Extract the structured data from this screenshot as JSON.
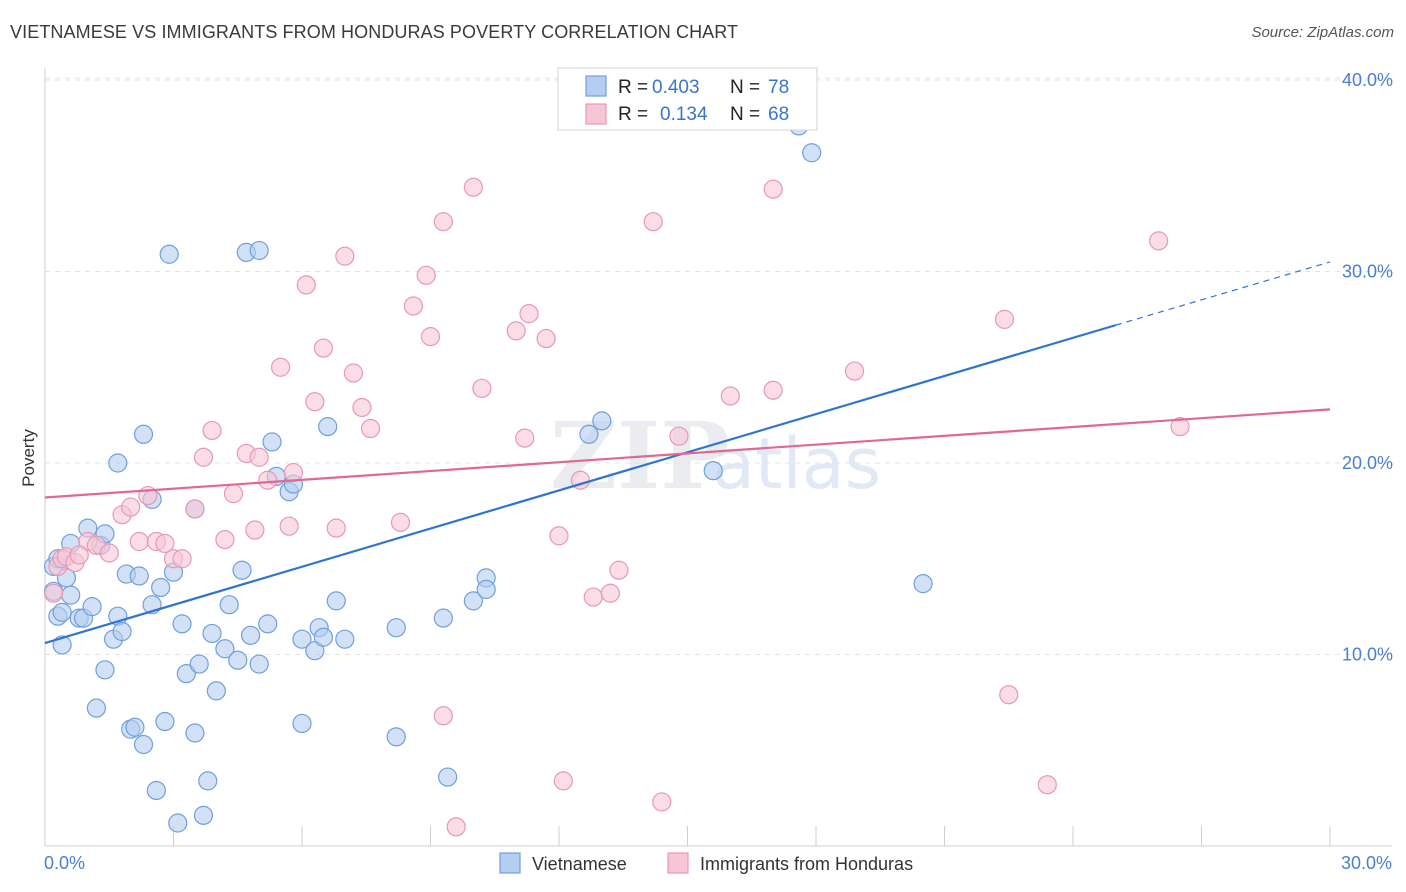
{
  "title": "VIETNAMESE VS IMMIGRANTS FROM HONDURAS POVERTY CORRELATION CHART",
  "source": "Source: ZipAtlas.com",
  "watermark": {
    "a": "ZIP",
    "b": "atlas"
  },
  "chart_data": {
    "type": "scatter",
    "title": "VIETNAMESE VS IMMIGRANTS FROM HONDURAS POVERTY CORRELATION CHART",
    "xlabel": "",
    "ylabel": "Poverty",
    "xlim": [
      0,
      30
    ],
    "ylim": [
      0,
      40.5
    ],
    "x_tick_labels": {
      "left": "0.0%",
      "right": "30.0%"
    },
    "y_ticks": [
      {
        "value": 10,
        "label": "10.0%"
      },
      {
        "value": 20,
        "label": "20.0%"
      },
      {
        "value": 30,
        "label": "30.0%"
      },
      {
        "value": 40,
        "label": "40.0%"
      }
    ],
    "legend_position": "top-center",
    "series": [
      {
        "name": "Vietnamese",
        "color": "#6ea0dc",
        "fill": "#b4cdf0",
        "R_label": "R =",
        "R_value": "0.403",
        "N_label": "N =",
        "N_value": "78",
        "trend": {
          "x0": 0,
          "y0": 10.6,
          "x1": 25,
          "y1": 27.2,
          "dash_to_x": 30,
          "dash_to_y": 30.5,
          "color": "#2f74d0"
        },
        "points": [
          [
            0.2,
            14.6
          ],
          [
            0.2,
            13.3
          ],
          [
            0.3,
            12.0
          ],
          [
            0.4,
            12.2
          ],
          [
            0.4,
            10.5
          ],
          [
            0.5,
            14.0
          ],
          [
            0.6,
            13.1
          ],
          [
            0.6,
            15.8
          ],
          [
            0.8,
            11.9
          ],
          [
            0.9,
            11.9
          ],
          [
            1.0,
            16.6
          ],
          [
            1.1,
            12.5
          ],
          [
            1.2,
            7.2
          ],
          [
            1.3,
            15.7
          ],
          [
            1.4,
            16.3
          ],
          [
            1.4,
            9.2
          ],
          [
            1.6,
            10.8
          ],
          [
            1.7,
            12.0
          ],
          [
            1.7,
            20.0
          ],
          [
            1.8,
            11.2
          ],
          [
            1.9,
            14.2
          ],
          [
            2.0,
            6.1
          ],
          [
            2.1,
            6.2
          ],
          [
            2.2,
            14.1
          ],
          [
            2.3,
            5.3
          ],
          [
            2.3,
            21.5
          ],
          [
            2.5,
            12.6
          ],
          [
            2.6,
            2.9
          ],
          [
            2.7,
            13.5
          ],
          [
            2.8,
            6.5
          ],
          [
            2.9,
            30.9
          ],
          [
            3.0,
            14.3
          ],
          [
            3.1,
            1.2
          ],
          [
            3.2,
            11.6
          ],
          [
            3.3,
            9.0
          ],
          [
            3.5,
            5.9
          ],
          [
            3.6,
            9.5
          ],
          [
            3.7,
            1.6
          ],
          [
            3.8,
            3.4
          ],
          [
            3.9,
            11.1
          ],
          [
            4.0,
            8.1
          ],
          [
            4.2,
            10.3
          ],
          [
            4.3,
            12.6
          ],
          [
            4.5,
            9.7
          ],
          [
            4.6,
            14.4
          ],
          [
            4.7,
            31.0
          ],
          [
            4.8,
            11.0
          ],
          [
            5.0,
            9.5
          ],
          [
            5.0,
            31.1
          ],
          [
            5.2,
            11.6
          ],
          [
            5.3,
            21.1
          ],
          [
            5.7,
            18.5
          ],
          [
            6.0,
            10.8
          ],
          [
            6.0,
            6.4
          ],
          [
            6.3,
            10.2
          ],
          [
            6.4,
            11.4
          ],
          [
            6.5,
            10.9
          ],
          [
            6.6,
            21.9
          ],
          [
            6.8,
            12.8
          ],
          [
            7.0,
            10.8
          ],
          [
            8.2,
            11.4
          ],
          [
            8.2,
            5.7
          ],
          [
            9.3,
            11.9
          ],
          [
            9.4,
            3.6
          ],
          [
            10.0,
            12.8
          ],
          [
            10.3,
            14.0
          ],
          [
            10.3,
            13.4
          ],
          [
            12.7,
            21.5
          ],
          [
            13.0,
            22.2
          ],
          [
            15.6,
            19.6
          ],
          [
            17.6,
            37.6
          ],
          [
            17.9,
            36.2
          ],
          [
            20.5,
            13.7
          ],
          [
            5.8,
            18.9
          ],
          [
            5.4,
            19.3
          ],
          [
            3.5,
            17.6
          ],
          [
            2.5,
            18.1
          ],
          [
            0.3,
            15.0
          ]
        ]
      },
      {
        "name": "Immigrants from Honduras",
        "color": "#e898b4",
        "fill": "#f6c6d6",
        "R_label": "R =",
        "R_value": "0.134",
        "N_label": "N =",
        "N_value": "68",
        "trend": {
          "x0": 0,
          "y0": 18.2,
          "x1": 30,
          "y1": 22.8,
          "color": "#e06894"
        },
        "points": [
          [
            0.2,
            13.2
          ],
          [
            0.3,
            14.6
          ],
          [
            0.4,
            15.0
          ],
          [
            0.5,
            15.1
          ],
          [
            0.7,
            14.8
          ],
          [
            1.0,
            15.9
          ],
          [
            1.2,
            15.7
          ],
          [
            1.5,
            15.3
          ],
          [
            1.8,
            17.3
          ],
          [
            2.0,
            17.7
          ],
          [
            2.2,
            15.9
          ],
          [
            2.4,
            18.3
          ],
          [
            2.6,
            15.9
          ],
          [
            2.8,
            15.8
          ],
          [
            3.0,
            15.0
          ],
          [
            3.2,
            15.0
          ],
          [
            3.5,
            17.6
          ],
          [
            3.7,
            20.3
          ],
          [
            3.9,
            21.7
          ],
          [
            4.2,
            16.0
          ],
          [
            4.4,
            18.4
          ],
          [
            4.7,
            20.5
          ],
          [
            4.9,
            16.5
          ],
          [
            5.0,
            20.3
          ],
          [
            5.2,
            19.1
          ],
          [
            5.5,
            25.0
          ],
          [
            5.7,
            16.7
          ],
          [
            5.8,
            19.5
          ],
          [
            6.1,
            29.3
          ],
          [
            6.3,
            23.2
          ],
          [
            6.5,
            26.0
          ],
          [
            6.8,
            16.6
          ],
          [
            7.0,
            30.8
          ],
          [
            7.2,
            24.7
          ],
          [
            7.4,
            22.9
          ],
          [
            7.6,
            21.8
          ],
          [
            8.3,
            16.9
          ],
          [
            8.6,
            28.2
          ],
          [
            8.9,
            29.8
          ],
          [
            9.0,
            26.6
          ],
          [
            9.3,
            32.6
          ],
          [
            9.3,
            6.8
          ],
          [
            9.6,
            1.0
          ],
          [
            10.0,
            34.4
          ],
          [
            10.2,
            23.9
          ],
          [
            11.0,
            26.9
          ],
          [
            11.2,
            21.3
          ],
          [
            11.3,
            27.8
          ],
          [
            11.7,
            26.5
          ],
          [
            12.0,
            16.2
          ],
          [
            12.1,
            3.4
          ],
          [
            12.5,
            19.1
          ],
          [
            12.8,
            13.0
          ],
          [
            13.2,
            13.2
          ],
          [
            13.4,
            14.4
          ],
          [
            14.2,
            32.6
          ],
          [
            14.4,
            2.3
          ],
          [
            14.8,
            21.4
          ],
          [
            16.0,
            23.5
          ],
          [
            17.0,
            23.8
          ],
          [
            17.0,
            34.3
          ],
          [
            18.9,
            24.8
          ],
          [
            22.4,
            27.5
          ],
          [
            22.5,
            7.9
          ],
          [
            23.4,
            3.2
          ],
          [
            26.0,
            31.6
          ],
          [
            26.5,
            21.9
          ],
          [
            0.8,
            15.2
          ]
        ]
      }
    ]
  }
}
